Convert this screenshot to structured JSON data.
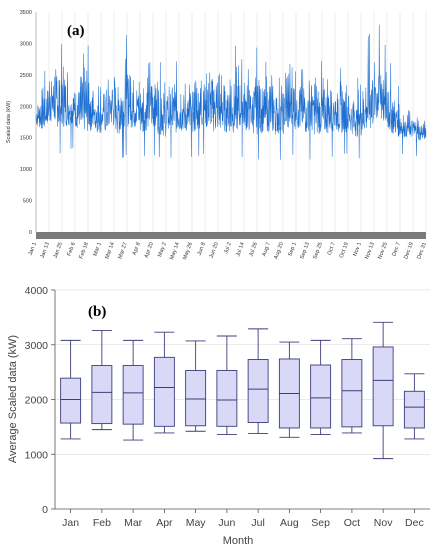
{
  "chart_data": [
    {
      "type": "line",
      "panel_label": "(a)",
      "ylabel": "Scaled data (kW)",
      "xlabel": "",
      "ylim": [
        0,
        3500
      ],
      "yticks": [
        0,
        500,
        1000,
        1500,
        2000,
        2500,
        3000,
        3500
      ],
      "xticks": [
        "Jan 1",
        "Jan 13",
        "Jan 25",
        "Feb 6",
        "Feb 18",
        "Mar 1",
        "Mar 14",
        "Mar 27",
        "Apr 8",
        "Apr 20",
        "May 2",
        "May 14",
        "May 26",
        "Jun 8",
        "Jun 20",
        "Jul 2",
        "Jul 14",
        "Jul 26",
        "Aug 7",
        "Aug 20",
        "Sep 1",
        "Sep 13",
        "Sep 25",
        "Oct 7",
        "Oct 19",
        "Nov 1",
        "Nov 13",
        "Nov 25",
        "Dec 7",
        "Dec 19",
        "Dec 31"
      ],
      "grid": "vertical",
      "series": [
        {
          "color": "#1f6fd0",
          "envelope_by_week": {
            "week": [
              1,
              2,
              3,
              4,
              5,
              6,
              7,
              8,
              9,
              10,
              11,
              12,
              13,
              14,
              15,
              16,
              17,
              18,
              19,
              20,
              21,
              22,
              23,
              24,
              25,
              26,
              27,
              28,
              29,
              30,
              31,
              32,
              33,
              34,
              35,
              36,
              37,
              38,
              39,
              40,
              41,
              42,
              43,
              44,
              45,
              46,
              47,
              48,
              49,
              50,
              51,
              52
            ],
            "low": [
              1550,
              1450,
              1550,
              1400,
              1450,
              1500,
              1350,
              1350,
              1400,
              1350,
              1350,
              1300,
              1400,
              1400,
              1350,
              1400,
              1350,
              1300,
              1350,
              1400,
              1350,
              1350,
              1400,
              1350,
              1300,
              1350,
              1300,
              1350,
              1350,
              1300,
              1400,
              1350,
              1300,
              1350,
              1400,
              1350,
              1300,
              1350,
              1350,
              1350,
              1400,
              1400,
              1350,
              1250,
              1350,
              1500,
              1400,
              1350,
              1400,
              1400,
              1350,
              1400
            ],
            "high": [
              2300,
              2500,
              2900,
              3000,
              2950,
              2650,
              2800,
              3000,
              2550,
              2700,
              3100,
              2750,
              3200,
              2950,
              2700,
              3100,
              2700,
              2700,
              2750,
              2650,
              2600,
              2850,
              2900,
              3050,
              2950,
              2900,
              2950,
              3050,
              2800,
              2950,
              2700,
              2800,
              2700,
              3000,
              2950,
              2800,
              2900,
              2700,
              2750,
              2900,
              2550,
              2600,
              2400,
              3000,
              3250,
              3300,
              2800,
              2500,
              2050,
              2050,
              1950,
              1850
            ]
          }
        }
      ]
    },
    {
      "type": "box",
      "panel_label": "(b)",
      "xlabel": "Month",
      "ylabel": "Average Scaled data (kW)",
      "ylim": [
        0,
        4000
      ],
      "yticks": [
        0,
        1000,
        2000,
        3000,
        4000
      ],
      "categories": [
        "Jan",
        "Feb",
        "Mar",
        "Apr",
        "May",
        "Jun",
        "Jul",
        "Aug",
        "Sep",
        "Oct",
        "Nov",
        "Dec"
      ],
      "fill_color": "#d9d9f7",
      "stroke_color": "#3d3d7a",
      "min": [
        1280,
        1450,
        1260,
        1390,
        1420,
        1360,
        1380,
        1310,
        1360,
        1390,
        920,
        1280
      ],
      "q1": [
        1570,
        1560,
        1550,
        1510,
        1520,
        1510,
        1580,
        1480,
        1480,
        1500,
        1520,
        1480
      ],
      "median": [
        2000,
        2130,
        2120,
        2220,
        2010,
        1990,
        2190,
        2110,
        2030,
        2160,
        2350,
        1860
      ],
      "q3": [
        2390,
        2620,
        2620,
        2770,
        2530,
        2530,
        2730,
        2740,
        2630,
        2730,
        2960,
        2150
      ],
      "max": [
        3080,
        3260,
        3080,
        3230,
        3070,
        3160,
        3290,
        3050,
        3080,
        3110,
        3410,
        2470
      ]
    }
  ]
}
